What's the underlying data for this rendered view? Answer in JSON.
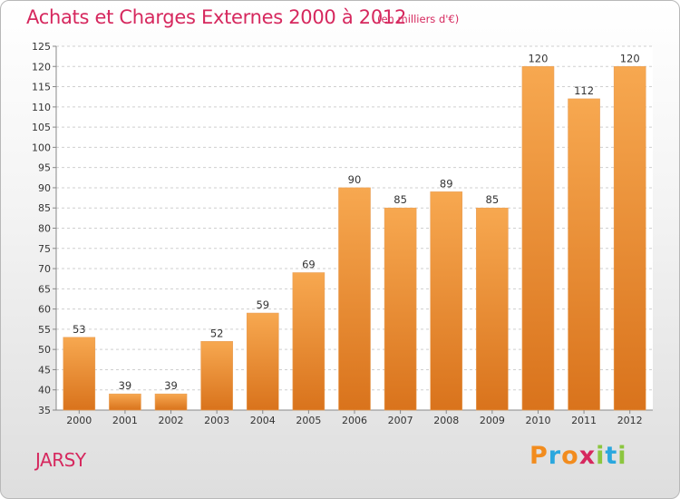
{
  "title": "Achats et Charges Externes 2000 à 2012",
  "subtitle": "(en milliers d'€)",
  "town": "JARSY",
  "logo": {
    "letters": [
      "P",
      "r",
      "o",
      "x",
      "i",
      "t",
      "i"
    ],
    "colors": [
      "#f28c1e",
      "#2aa7de",
      "#f28c1e",
      "#d6285e",
      "#8cc63f",
      "#2aa7de",
      "#8cc63f"
    ]
  },
  "colors": {
    "accent": "#d6285e",
    "bar_top": "#f7a850",
    "bar_bottom": "#d9731c"
  },
  "chart_data": {
    "type": "bar",
    "categories": [
      "2000",
      "2001",
      "2002",
      "2003",
      "2004",
      "2005",
      "2006",
      "2007",
      "2008",
      "2009",
      "2010",
      "2011",
      "2012"
    ],
    "values": [
      53,
      39,
      39,
      52,
      59,
      69,
      90,
      85,
      89,
      85,
      120,
      112,
      120
    ],
    "ylim": [
      35,
      125
    ],
    "yticks": [
      35,
      40,
      45,
      50,
      55,
      60,
      65,
      70,
      75,
      80,
      85,
      90,
      95,
      100,
      105,
      110,
      115,
      120,
      125
    ],
    "grid": "horizontal dashed"
  }
}
